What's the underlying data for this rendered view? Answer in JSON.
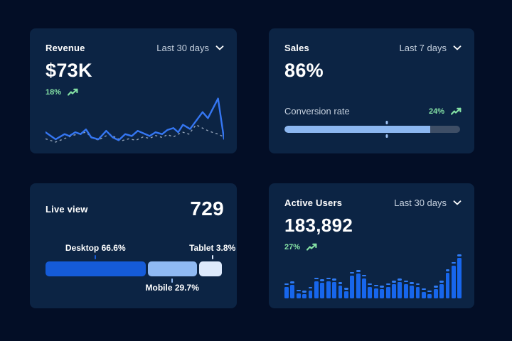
{
  "theme": {
    "page_bg": "#030e26",
    "card_bg": "#0c2444",
    "accent_blue": "#3576f2",
    "green": "#85e2a5",
    "muted_text": "#c5d0de",
    "track_gray": "#3e4e66",
    "progress_fill": "#8cb7f0"
  },
  "icons": {
    "dropdown": "chevron-down",
    "trend": "trending-up"
  },
  "cards": {
    "revenue": {
      "title": "Revenue",
      "range_label": "Last 30 days",
      "value": "$73K",
      "delta": "18%",
      "chart_data": {
        "type": "line",
        "title": "Revenue trend, last 30 days",
        "legend_position": "none",
        "grid": false,
        "series": [
          {
            "name": "current",
            "style": "solid",
            "color": "#3576f2",
            "points": [
              [
                0,
                76
              ],
              [
                17,
                91
              ],
              [
                32,
                80
              ],
              [
                40,
                84
              ],
              [
                50,
                76
              ],
              [
                59,
                80
              ],
              [
                68,
                70
              ],
              [
                77,
                87
              ],
              [
                89,
                91
              ],
              [
                102,
                73
              ],
              [
                113,
                87
              ],
              [
                123,
                93
              ],
              [
                134,
                80
              ],
              [
                145,
                84
              ],
              [
                155,
                73
              ],
              [
                166,
                79
              ],
              [
                175,
                84
              ],
              [
                185,
                76
              ],
              [
                196,
                80
              ],
              [
                205,
                71
              ],
              [
                215,
                67
              ],
              [
                223,
                76
              ],
              [
                231,
                60
              ],
              [
                243,
                69
              ],
              [
                264,
                33
              ],
              [
                273,
                46
              ],
              [
                290,
                4
              ],
              [
                300,
                90
              ]
            ]
          },
          {
            "name": "previous",
            "style": "dashed",
            "color": "#93a3b8",
            "points": [
              [
                0,
                90
              ],
              [
                17,
                97
              ],
              [
                33,
                89
              ],
              [
                45,
                83
              ],
              [
                57,
                79
              ],
              [
                68,
                76
              ],
              [
                77,
                86
              ],
              [
                89,
                93
              ],
              [
                98,
                86
              ],
              [
                108,
                80
              ],
              [
                116,
                86
              ],
              [
                128,
                94
              ],
              [
                140,
                90
              ],
              [
                152,
                93
              ],
              [
                164,
                86
              ],
              [
                175,
                89
              ],
              [
                185,
                83
              ],
              [
                196,
                87
              ],
              [
                205,
                81
              ],
              [
                215,
                86
              ],
              [
                223,
                80
              ],
              [
                231,
                76
              ],
              [
                241,
                80
              ],
              [
                253,
                60
              ],
              [
                262,
                66
              ],
              [
                270,
                71
              ],
              [
                280,
                76
              ],
              [
                290,
                80
              ],
              [
                300,
                86
              ]
            ]
          }
        ]
      }
    },
    "sales": {
      "title": "Sales",
      "range_label": "Last 7 days",
      "value": "86%",
      "metric_label": "Conversion rate",
      "delta": "24%",
      "progress_pct": 83,
      "marker_pct": 58
    },
    "live_view": {
      "title": "Live view",
      "value": "729",
      "chart_data": {
        "type": "stacked-bar",
        "title": "Live visitors by device",
        "segments": [
          {
            "label": "Desktop",
            "pct_label": "66.6%",
            "display": "Desktop 66.6%",
            "value": 66.6,
            "color": "#155bd8",
            "width_pct": 56.5,
            "center_pct": 28,
            "label_pos": "top"
          },
          {
            "label": "Mobile",
            "pct_label": "29.7%",
            "display": "Mobile 29.7%",
            "value": 29.7,
            "color": "#8fb9f3",
            "width_pct": 28,
            "center_pct": 71,
            "label_pos": "bottom"
          },
          {
            "label": "Tablet",
            "pct_label": "3.8%",
            "display": "Tablet 3.8%",
            "value": 3.8,
            "color": "#dde9fb",
            "width_pct": 12.8,
            "center_pct": 93.5,
            "label_pos": "top"
          }
        ]
      }
    },
    "active_users": {
      "title": "Active Users",
      "range_label": "Last 30 days",
      "value": "183,892",
      "delta": "27%",
      "chart_data": {
        "type": "bar",
        "title": "Active users per day, last 30 days",
        "ylim": [
          0,
          100
        ],
        "grid": false,
        "values": [
          34,
          38,
          20,
          17,
          26,
          47,
          43,
          47,
          45,
          37,
          24,
          60,
          64,
          54,
          34,
          31,
          29,
          34,
          40,
          45,
          41,
          37,
          34,
          23,
          18,
          29,
          40,
          66,
          83,
          100
        ]
      }
    }
  }
}
